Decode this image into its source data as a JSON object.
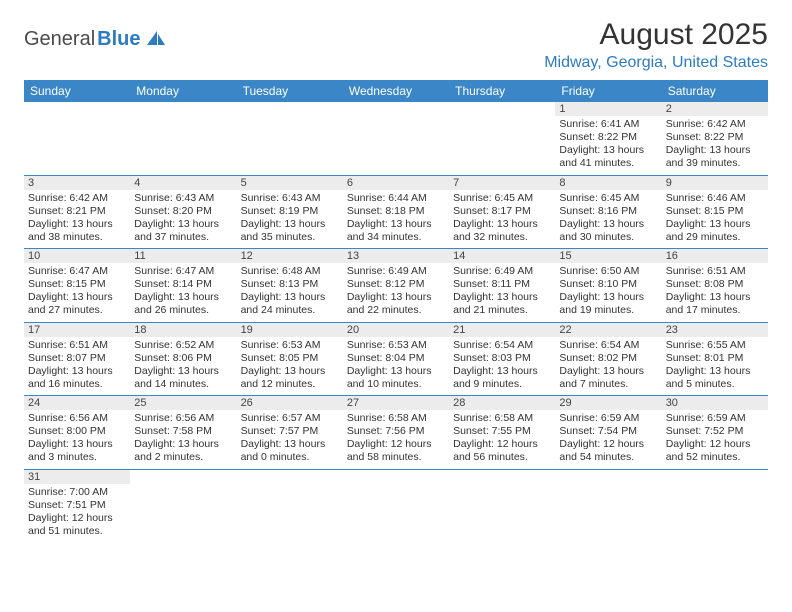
{
  "logo": {
    "text1": "General",
    "text2": "Blue"
  },
  "title": "August 2025",
  "location": "Midway, Georgia, United States",
  "colors": {
    "header_bg": "#3b86c6",
    "header_text": "#ffffff",
    "accent": "#2e7cc0",
    "daynum_bg": "#ececec",
    "text": "#333333",
    "row_border": "#3b86c6"
  },
  "day_headers": [
    "Sunday",
    "Monday",
    "Tuesday",
    "Wednesday",
    "Thursday",
    "Friday",
    "Saturday"
  ],
  "weeks": [
    [
      null,
      null,
      null,
      null,
      null,
      {
        "n": "1",
        "sr": "Sunrise: 6:41 AM",
        "ss": "Sunset: 8:22 PM",
        "d1": "Daylight: 13 hours",
        "d2": "and 41 minutes."
      },
      {
        "n": "2",
        "sr": "Sunrise: 6:42 AM",
        "ss": "Sunset: 8:22 PM",
        "d1": "Daylight: 13 hours",
        "d2": "and 39 minutes."
      }
    ],
    [
      {
        "n": "3",
        "sr": "Sunrise: 6:42 AM",
        "ss": "Sunset: 8:21 PM",
        "d1": "Daylight: 13 hours",
        "d2": "and 38 minutes."
      },
      {
        "n": "4",
        "sr": "Sunrise: 6:43 AM",
        "ss": "Sunset: 8:20 PM",
        "d1": "Daylight: 13 hours",
        "d2": "and 37 minutes."
      },
      {
        "n": "5",
        "sr": "Sunrise: 6:43 AM",
        "ss": "Sunset: 8:19 PM",
        "d1": "Daylight: 13 hours",
        "d2": "and 35 minutes."
      },
      {
        "n": "6",
        "sr": "Sunrise: 6:44 AM",
        "ss": "Sunset: 8:18 PM",
        "d1": "Daylight: 13 hours",
        "d2": "and 34 minutes."
      },
      {
        "n": "7",
        "sr": "Sunrise: 6:45 AM",
        "ss": "Sunset: 8:17 PM",
        "d1": "Daylight: 13 hours",
        "d2": "and 32 minutes."
      },
      {
        "n": "8",
        "sr": "Sunrise: 6:45 AM",
        "ss": "Sunset: 8:16 PM",
        "d1": "Daylight: 13 hours",
        "d2": "and 30 minutes."
      },
      {
        "n": "9",
        "sr": "Sunrise: 6:46 AM",
        "ss": "Sunset: 8:15 PM",
        "d1": "Daylight: 13 hours",
        "d2": "and 29 minutes."
      }
    ],
    [
      {
        "n": "10",
        "sr": "Sunrise: 6:47 AM",
        "ss": "Sunset: 8:15 PM",
        "d1": "Daylight: 13 hours",
        "d2": "and 27 minutes."
      },
      {
        "n": "11",
        "sr": "Sunrise: 6:47 AM",
        "ss": "Sunset: 8:14 PM",
        "d1": "Daylight: 13 hours",
        "d2": "and 26 minutes."
      },
      {
        "n": "12",
        "sr": "Sunrise: 6:48 AM",
        "ss": "Sunset: 8:13 PM",
        "d1": "Daylight: 13 hours",
        "d2": "and 24 minutes."
      },
      {
        "n": "13",
        "sr": "Sunrise: 6:49 AM",
        "ss": "Sunset: 8:12 PM",
        "d1": "Daylight: 13 hours",
        "d2": "and 22 minutes."
      },
      {
        "n": "14",
        "sr": "Sunrise: 6:49 AM",
        "ss": "Sunset: 8:11 PM",
        "d1": "Daylight: 13 hours",
        "d2": "and 21 minutes."
      },
      {
        "n": "15",
        "sr": "Sunrise: 6:50 AM",
        "ss": "Sunset: 8:10 PM",
        "d1": "Daylight: 13 hours",
        "d2": "and 19 minutes."
      },
      {
        "n": "16",
        "sr": "Sunrise: 6:51 AM",
        "ss": "Sunset: 8:08 PM",
        "d1": "Daylight: 13 hours",
        "d2": "and 17 minutes."
      }
    ],
    [
      {
        "n": "17",
        "sr": "Sunrise: 6:51 AM",
        "ss": "Sunset: 8:07 PM",
        "d1": "Daylight: 13 hours",
        "d2": "and 16 minutes."
      },
      {
        "n": "18",
        "sr": "Sunrise: 6:52 AM",
        "ss": "Sunset: 8:06 PM",
        "d1": "Daylight: 13 hours",
        "d2": "and 14 minutes."
      },
      {
        "n": "19",
        "sr": "Sunrise: 6:53 AM",
        "ss": "Sunset: 8:05 PM",
        "d1": "Daylight: 13 hours",
        "d2": "and 12 minutes."
      },
      {
        "n": "20",
        "sr": "Sunrise: 6:53 AM",
        "ss": "Sunset: 8:04 PM",
        "d1": "Daylight: 13 hours",
        "d2": "and 10 minutes."
      },
      {
        "n": "21",
        "sr": "Sunrise: 6:54 AM",
        "ss": "Sunset: 8:03 PM",
        "d1": "Daylight: 13 hours",
        "d2": "and 9 minutes."
      },
      {
        "n": "22",
        "sr": "Sunrise: 6:54 AM",
        "ss": "Sunset: 8:02 PM",
        "d1": "Daylight: 13 hours",
        "d2": "and 7 minutes."
      },
      {
        "n": "23",
        "sr": "Sunrise: 6:55 AM",
        "ss": "Sunset: 8:01 PM",
        "d1": "Daylight: 13 hours",
        "d2": "and 5 minutes."
      }
    ],
    [
      {
        "n": "24",
        "sr": "Sunrise: 6:56 AM",
        "ss": "Sunset: 8:00 PM",
        "d1": "Daylight: 13 hours",
        "d2": "and 3 minutes."
      },
      {
        "n": "25",
        "sr": "Sunrise: 6:56 AM",
        "ss": "Sunset: 7:58 PM",
        "d1": "Daylight: 13 hours",
        "d2": "and 2 minutes."
      },
      {
        "n": "26",
        "sr": "Sunrise: 6:57 AM",
        "ss": "Sunset: 7:57 PM",
        "d1": "Daylight: 13 hours",
        "d2": "and 0 minutes."
      },
      {
        "n": "27",
        "sr": "Sunrise: 6:58 AM",
        "ss": "Sunset: 7:56 PM",
        "d1": "Daylight: 12 hours",
        "d2": "and 58 minutes."
      },
      {
        "n": "28",
        "sr": "Sunrise: 6:58 AM",
        "ss": "Sunset: 7:55 PM",
        "d1": "Daylight: 12 hours",
        "d2": "and 56 minutes."
      },
      {
        "n": "29",
        "sr": "Sunrise: 6:59 AM",
        "ss": "Sunset: 7:54 PM",
        "d1": "Daylight: 12 hours",
        "d2": "and 54 minutes."
      },
      {
        "n": "30",
        "sr": "Sunrise: 6:59 AM",
        "ss": "Sunset: 7:52 PM",
        "d1": "Daylight: 12 hours",
        "d2": "and 52 minutes."
      }
    ],
    [
      {
        "n": "31",
        "sr": "Sunrise: 7:00 AM",
        "ss": "Sunset: 7:51 PM",
        "d1": "Daylight: 12 hours",
        "d2": "and 51 minutes."
      },
      null,
      null,
      null,
      null,
      null,
      null
    ]
  ]
}
